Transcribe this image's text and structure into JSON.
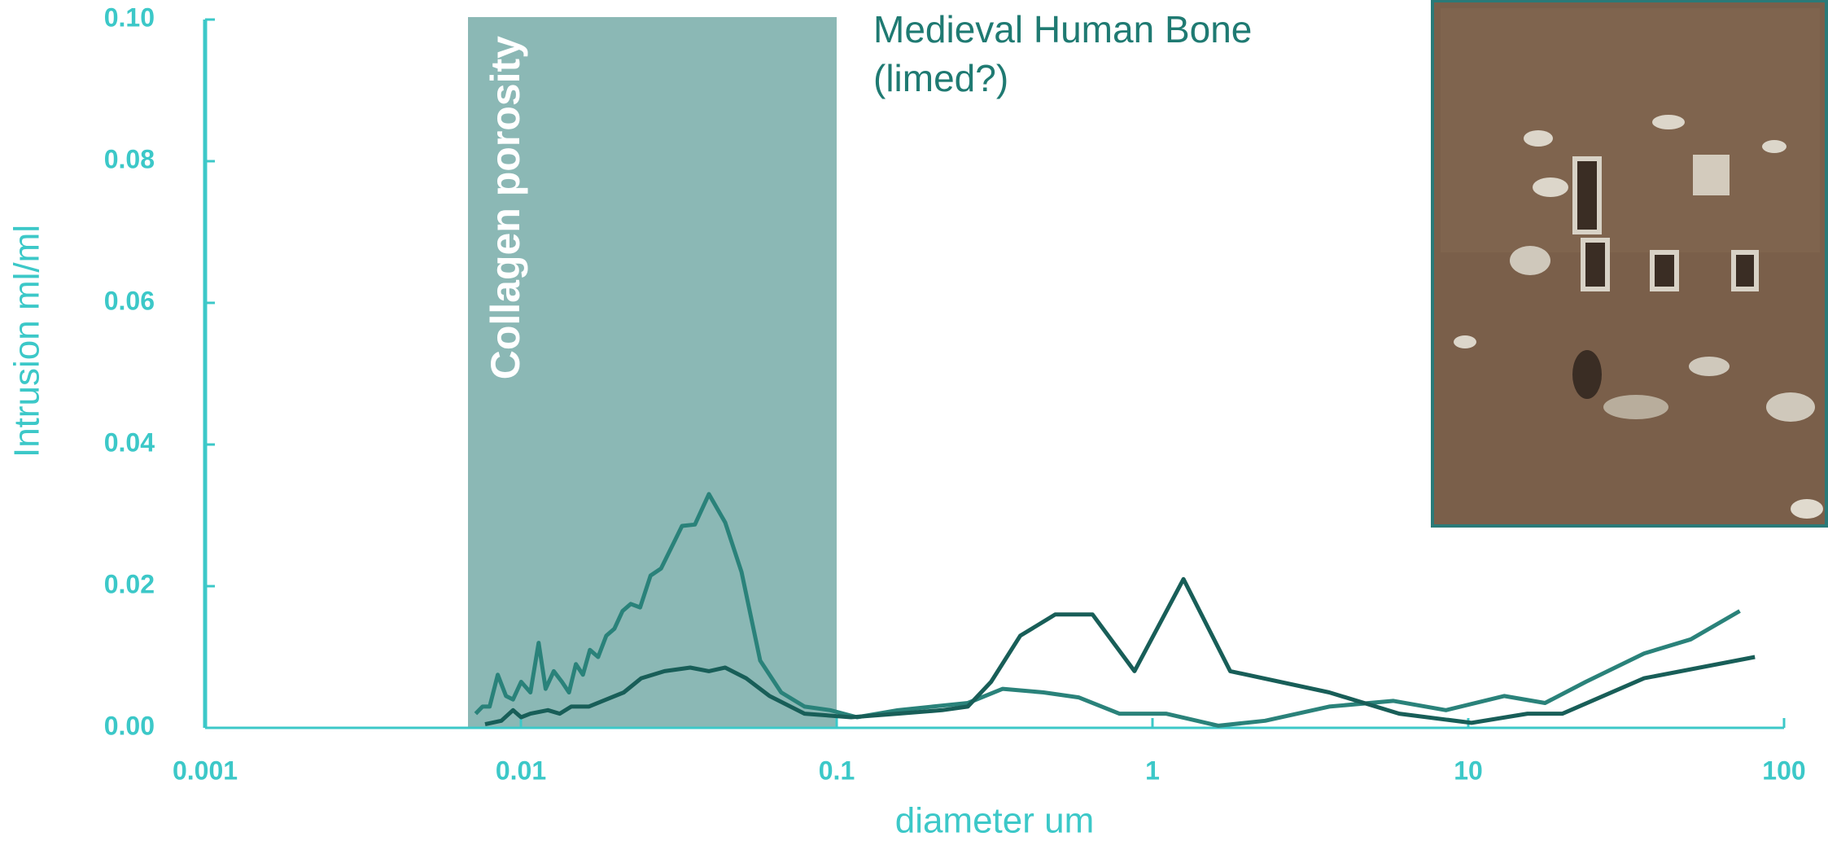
{
  "chart_data": {
    "type": "line",
    "annotation": [
      "Medieval Human Bone",
      "(limed?)"
    ],
    "shaded_region": {
      "x": [
        0.0068,
        0.1
      ],
      "label": "Collagen porosity",
      "color": "#8bb8b5"
    },
    "xlabel": "diameter um",
    "ylabel": "Intrusion ml/ml",
    "xscale": "log",
    "xlim": [
      0.001,
      100
    ],
    "xticks": [
      0.001,
      0.01,
      0.1,
      1,
      10,
      100
    ],
    "ylim": [
      0,
      0.1
    ],
    "yticks": [
      {
        "value": 0,
        "label": "0.00"
      },
      {
        "value": 0.02,
        "label": "0.02"
      },
      {
        "value": 0.04,
        "label": "0.04"
      },
      {
        "value": 0.06,
        "label": "0.06"
      },
      {
        "value": 0.08,
        "label": "0.08"
      },
      {
        "value": 0.1,
        "label": "0.10"
      }
    ],
    "axis_color": "#3cc8c8",
    "series": [
      {
        "color": "#2a827a",
        "x": [
          0.00719,
          0.00756,
          0.00796,
          0.00845,
          0.00897,
          0.00944,
          0.01002,
          0.01072,
          0.01138,
          0.01198,
          0.01271,
          0.01349,
          0.0142,
          0.01494,
          0.01572,
          0.01654,
          0.01756,
          0.01864,
          0.01978,
          0.02099,
          0.02228,
          0.02385,
          0.02574,
          0.02779,
          0.03,
          0.03238,
          0.03556,
          0.03938,
          0.04436,
          0.04996,
          0.05726,
          0.06672,
          0.07909,
          0.09535,
          0.116,
          0.1562,
          0.2015,
          0.2601,
          0.3356,
          0.452,
          0.5833,
          0.7855,
          1.1036,
          1.618,
          2.273,
          3.628,
          5.795,
          8.498,
          12.99,
          17.5,
          23.56,
          36.06,
          50.66,
          72.39
        ],
        "values": [
          0.002,
          0.003,
          0.003,
          0.0075,
          0.0045,
          0.004,
          0.0065,
          0.005,
          0.012,
          0.0055,
          0.008,
          0.0065,
          0.005,
          0.009,
          0.0075,
          0.011,
          0.01,
          0.013,
          0.014,
          0.0165,
          0.0175,
          0.017,
          0.0215,
          0.0225,
          0.0255,
          0.0285,
          0.0287,
          0.033,
          0.029,
          0.022,
          0.0095,
          0.005,
          0.003,
          0.0025,
          0.0015,
          0.0025,
          0.003,
          0.0035,
          0.0055,
          0.005,
          0.0043,
          0.002,
          0.002,
          0.0003,
          0.001,
          0.003,
          0.0038,
          0.0025,
          0.0045,
          0.0035,
          0.0065,
          0.0105,
          0.0125,
          0.0165
        ]
      },
      {
        "color": "#185e58",
        "x": [
          0.0077,
          0.00867,
          0.00944,
          0.01002,
          0.01072,
          0.01218,
          0.01327,
          0.01444,
          0.0164,
          0.01864,
          0.02117,
          0.02405,
          0.02851,
          0.03438,
          0.03938,
          0.04436,
          0.0517,
          0.06129,
          0.07909,
          0.1111,
          0.1562,
          0.2157,
          0.2601,
          0.3083,
          0.3813,
          0.492,
          0.646,
          0.8772,
          1.254,
          1.762,
          3.628,
          6.046,
          10.24,
          15.4,
          19.88,
          36.06,
          80.84
        ],
        "values": [
          0.0005,
          0.001,
          0.0025,
          0.0015,
          0.002,
          0.0025,
          0.002,
          0.003,
          0.003,
          0.004,
          0.005,
          0.007,
          0.008,
          0.0085,
          0.008,
          0.0085,
          0.007,
          0.0045,
          0.002,
          0.0015,
          0.002,
          0.0025,
          0.003,
          0.0065,
          0.013,
          0.016,
          0.016,
          0.008,
          0.021,
          0.008,
          0.005,
          0.002,
          0.0007,
          0.002,
          0.002,
          0.007,
          0.01
        ]
      }
    ]
  }
}
